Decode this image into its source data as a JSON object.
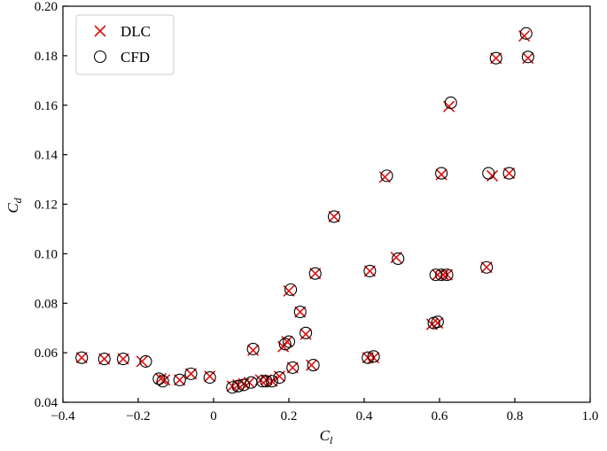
{
  "chart_data": {
    "type": "scatter",
    "title": "",
    "xlabel": "C",
    "xlabel_sub": "l",
    "ylabel": "C",
    "ylabel_sub": "d",
    "xlim": [
      -0.4,
      1.0
    ],
    "ylim": [
      0.04,
      0.2
    ],
    "xticks": [
      -0.4,
      -0.2,
      0,
      0.2,
      0.4,
      0.6,
      0.8,
      1.0
    ],
    "xtick_labels": [
      "−0.4",
      "−0.2",
      "0",
      "0.2",
      "0.4",
      "0.6",
      "0.8",
      "1.0"
    ],
    "yticks": [
      0.04,
      0.06,
      0.08,
      0.1,
      0.12,
      0.14,
      0.16,
      0.18,
      0.2
    ],
    "ytick_labels": [
      "0.04",
      "0.06",
      "0.08",
      "0.10",
      "0.12",
      "0.14",
      "0.16",
      "0.18",
      "0.20"
    ],
    "grid": false,
    "legend_position": "top-left",
    "series": [
      {
        "name": "DLC",
        "marker": "x",
        "color": "#e01010",
        "points": [
          [
            -0.35,
            0.058
          ],
          [
            -0.29,
            0.0575
          ],
          [
            -0.24,
            0.0575
          ],
          [
            -0.19,
            0.0565
          ],
          [
            -0.14,
            0.0495
          ],
          [
            -0.13,
            0.049
          ],
          [
            -0.09,
            0.049
          ],
          [
            -0.06,
            0.0515
          ],
          [
            -0.01,
            0.0505
          ],
          [
            0.05,
            0.0465
          ],
          [
            0.065,
            0.047
          ],
          [
            0.08,
            0.0475
          ],
          [
            0.095,
            0.048
          ],
          [
            0.125,
            0.049
          ],
          [
            0.14,
            0.049
          ],
          [
            0.155,
            0.0485
          ],
          [
            0.175,
            0.0505
          ],
          [
            0.105,
            0.061
          ],
          [
            0.185,
            0.0625
          ],
          [
            0.195,
            0.0645
          ],
          [
            0.21,
            0.054
          ],
          [
            0.245,
            0.0675
          ],
          [
            0.26,
            0.055
          ],
          [
            0.23,
            0.0765
          ],
          [
            0.2,
            0.085
          ],
          [
            0.27,
            0.092
          ],
          [
            0.32,
            0.115
          ],
          [
            0.41,
            0.058
          ],
          [
            0.425,
            0.058
          ],
          [
            0.415,
            0.093
          ],
          [
            0.455,
            0.131
          ],
          [
            0.485,
            0.0985
          ],
          [
            0.58,
            0.0715
          ],
          [
            0.595,
            0.072
          ],
          [
            0.595,
            0.0915
          ],
          [
            0.61,
            0.0915
          ],
          [
            0.62,
            0.0915
          ],
          [
            0.605,
            0.132
          ],
          [
            0.625,
            0.1595
          ],
          [
            0.725,
            0.0945
          ],
          [
            0.74,
            0.1315
          ],
          [
            0.785,
            0.1325
          ],
          [
            0.75,
            0.179
          ],
          [
            0.825,
            0.188
          ],
          [
            0.835,
            0.179
          ]
        ]
      },
      {
        "name": "CFD",
        "marker": "o",
        "color": "#000000",
        "points": [
          [
            -0.35,
            0.058
          ],
          [
            -0.29,
            0.0575
          ],
          [
            -0.24,
            0.0575
          ],
          [
            -0.18,
            0.0565
          ],
          [
            -0.145,
            0.0495
          ],
          [
            -0.135,
            0.0485
          ],
          [
            -0.09,
            0.049
          ],
          [
            -0.06,
            0.0515
          ],
          [
            -0.01,
            0.05
          ],
          [
            0.05,
            0.046
          ],
          [
            0.065,
            0.0465
          ],
          [
            0.08,
            0.047
          ],
          [
            0.1,
            0.048
          ],
          [
            0.13,
            0.0485
          ],
          [
            0.14,
            0.0485
          ],
          [
            0.155,
            0.0485
          ],
          [
            0.175,
            0.05
          ],
          [
            0.105,
            0.0615
          ],
          [
            0.19,
            0.0635
          ],
          [
            0.2,
            0.0645
          ],
          [
            0.21,
            0.054
          ],
          [
            0.245,
            0.068
          ],
          [
            0.265,
            0.055
          ],
          [
            0.23,
            0.0765
          ],
          [
            0.205,
            0.0855
          ],
          [
            0.27,
            0.092
          ],
          [
            0.32,
            0.115
          ],
          [
            0.41,
            0.058
          ],
          [
            0.425,
            0.0585
          ],
          [
            0.415,
            0.093
          ],
          [
            0.46,
            0.1315
          ],
          [
            0.49,
            0.098
          ],
          [
            0.585,
            0.072
          ],
          [
            0.595,
            0.0725
          ],
          [
            0.59,
            0.0915
          ],
          [
            0.605,
            0.0915
          ],
          [
            0.62,
            0.0915
          ],
          [
            0.605,
            0.1325
          ],
          [
            0.63,
            0.161
          ],
          [
            0.725,
            0.0945
          ],
          [
            0.73,
            0.1325
          ],
          [
            0.785,
            0.1325
          ],
          [
            0.75,
            0.179
          ],
          [
            0.83,
            0.189
          ],
          [
            0.835,
            0.1795
          ]
        ]
      }
    ]
  }
}
